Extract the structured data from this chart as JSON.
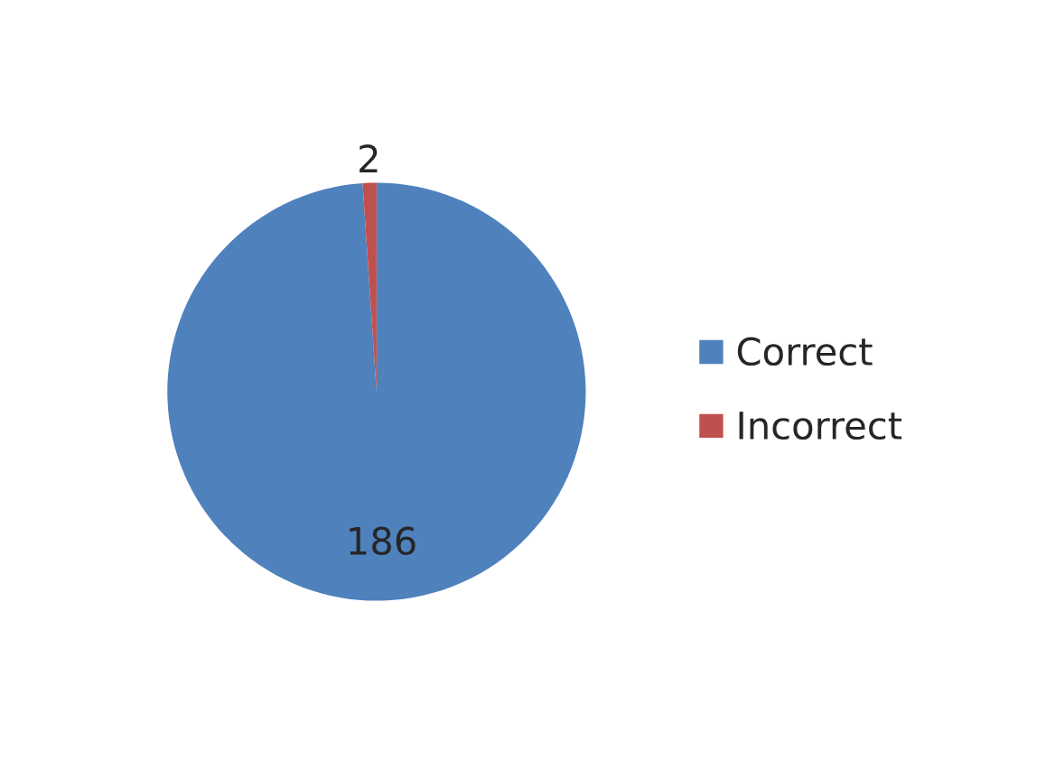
{
  "chart_data": {
    "type": "pie",
    "categories": [
      "Correct",
      "Incorrect"
    ],
    "values": [
      186,
      2
    ],
    "colors": [
      "#4f81bd",
      "#c0504d"
    ],
    "data_labels": true,
    "legend": "right"
  }
}
